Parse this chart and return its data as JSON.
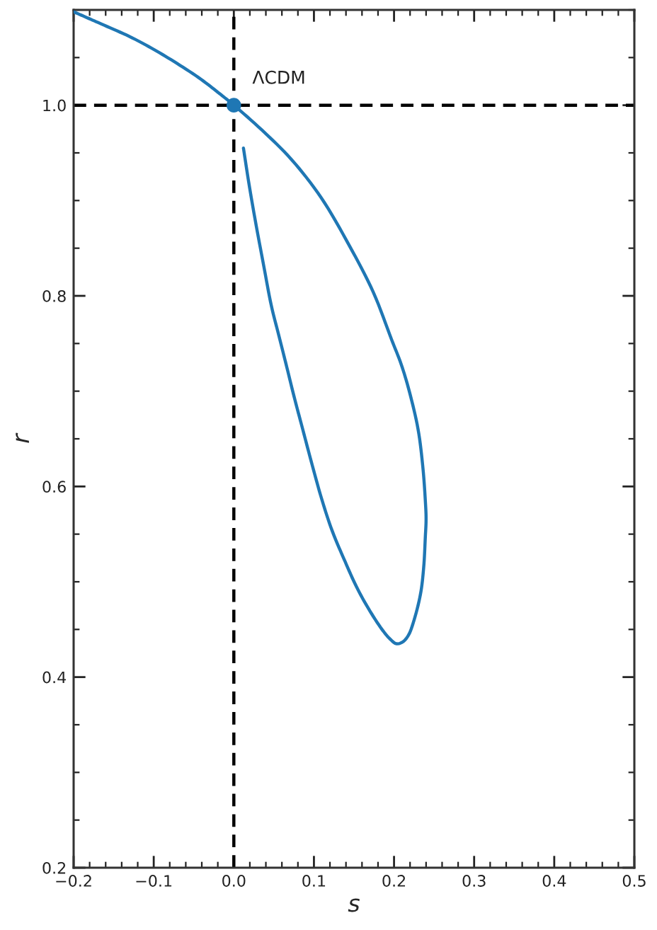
{
  "chart_data": {
    "type": "line",
    "xlabel": "s",
    "ylabel": "r",
    "series": [
      {
        "color": "#1f77b4",
        "x": [
          0.012,
          0.019,
          0.027,
          0.037,
          0.047,
          0.056,
          0.065,
          0.075,
          0.086,
          0.098,
          0.11,
          0.123,
          0.139,
          0.153,
          0.168,
          0.185,
          0.195,
          0.203,
          0.211,
          0.218,
          0.224,
          0.233,
          0.237,
          0.239,
          0.24,
          0.239,
          0.236,
          0.23,
          0.219,
          0.209,
          0.197,
          0.174,
          0.144,
          0.109,
          0.072,
          0.035,
          0.0,
          -0.022,
          -0.044,
          -0.075,
          -0.103,
          -0.13,
          -0.162,
          -0.181,
          -0.2
        ],
        "values": [
          0.955,
          0.917,
          0.878,
          0.833,
          0.789,
          0.759,
          0.729,
          0.695,
          0.66,
          0.622,
          0.586,
          0.553,
          0.521,
          0.495,
          0.472,
          0.45,
          0.44,
          0.435,
          0.437,
          0.444,
          0.457,
          0.487,
          0.515,
          0.546,
          0.566,
          0.586,
          0.62,
          0.66,
          0.7,
          0.728,
          0.754,
          0.804,
          0.853,
          0.903,
          0.943,
          0.974,
          1.0,
          1.015,
          1.029,
          1.046,
          1.06,
          1.072,
          1.084,
          1.091,
          1.098
        ]
      },
      {
        "type": "scatter",
        "color": "#1f77b4",
        "marker": "circle",
        "x": [
          0.0
        ],
        "values": [
          1.0
        ]
      }
    ],
    "annotations": [
      {
        "text": "ΛCDM",
        "x": 0.0,
        "y": 1.0
      }
    ],
    "ref_lines": [
      {
        "axis": "x",
        "value": 0.0,
        "color": "#000000",
        "line_style": "dashed"
      },
      {
        "axis": "y",
        "value": 1.0,
        "color": "#000000",
        "line_style": "dashed"
      }
    ],
    "xlim": [
      -0.2,
      0.5
    ],
    "ylim": [
      0.2,
      1.1
    ],
    "xticks": [
      {
        "value": -0.2,
        "label": "−0.2"
      },
      {
        "value": -0.1,
        "label": "−0.1"
      },
      {
        "value": 0.0,
        "label": "0.0"
      },
      0.1,
      0.2,
      0.3,
      0.4,
      0.5
    ],
    "yticks": [
      0.2,
      0.4,
      0.6,
      0.8,
      {
        "value": 1.0,
        "label": "1.0"
      }
    ]
  }
}
